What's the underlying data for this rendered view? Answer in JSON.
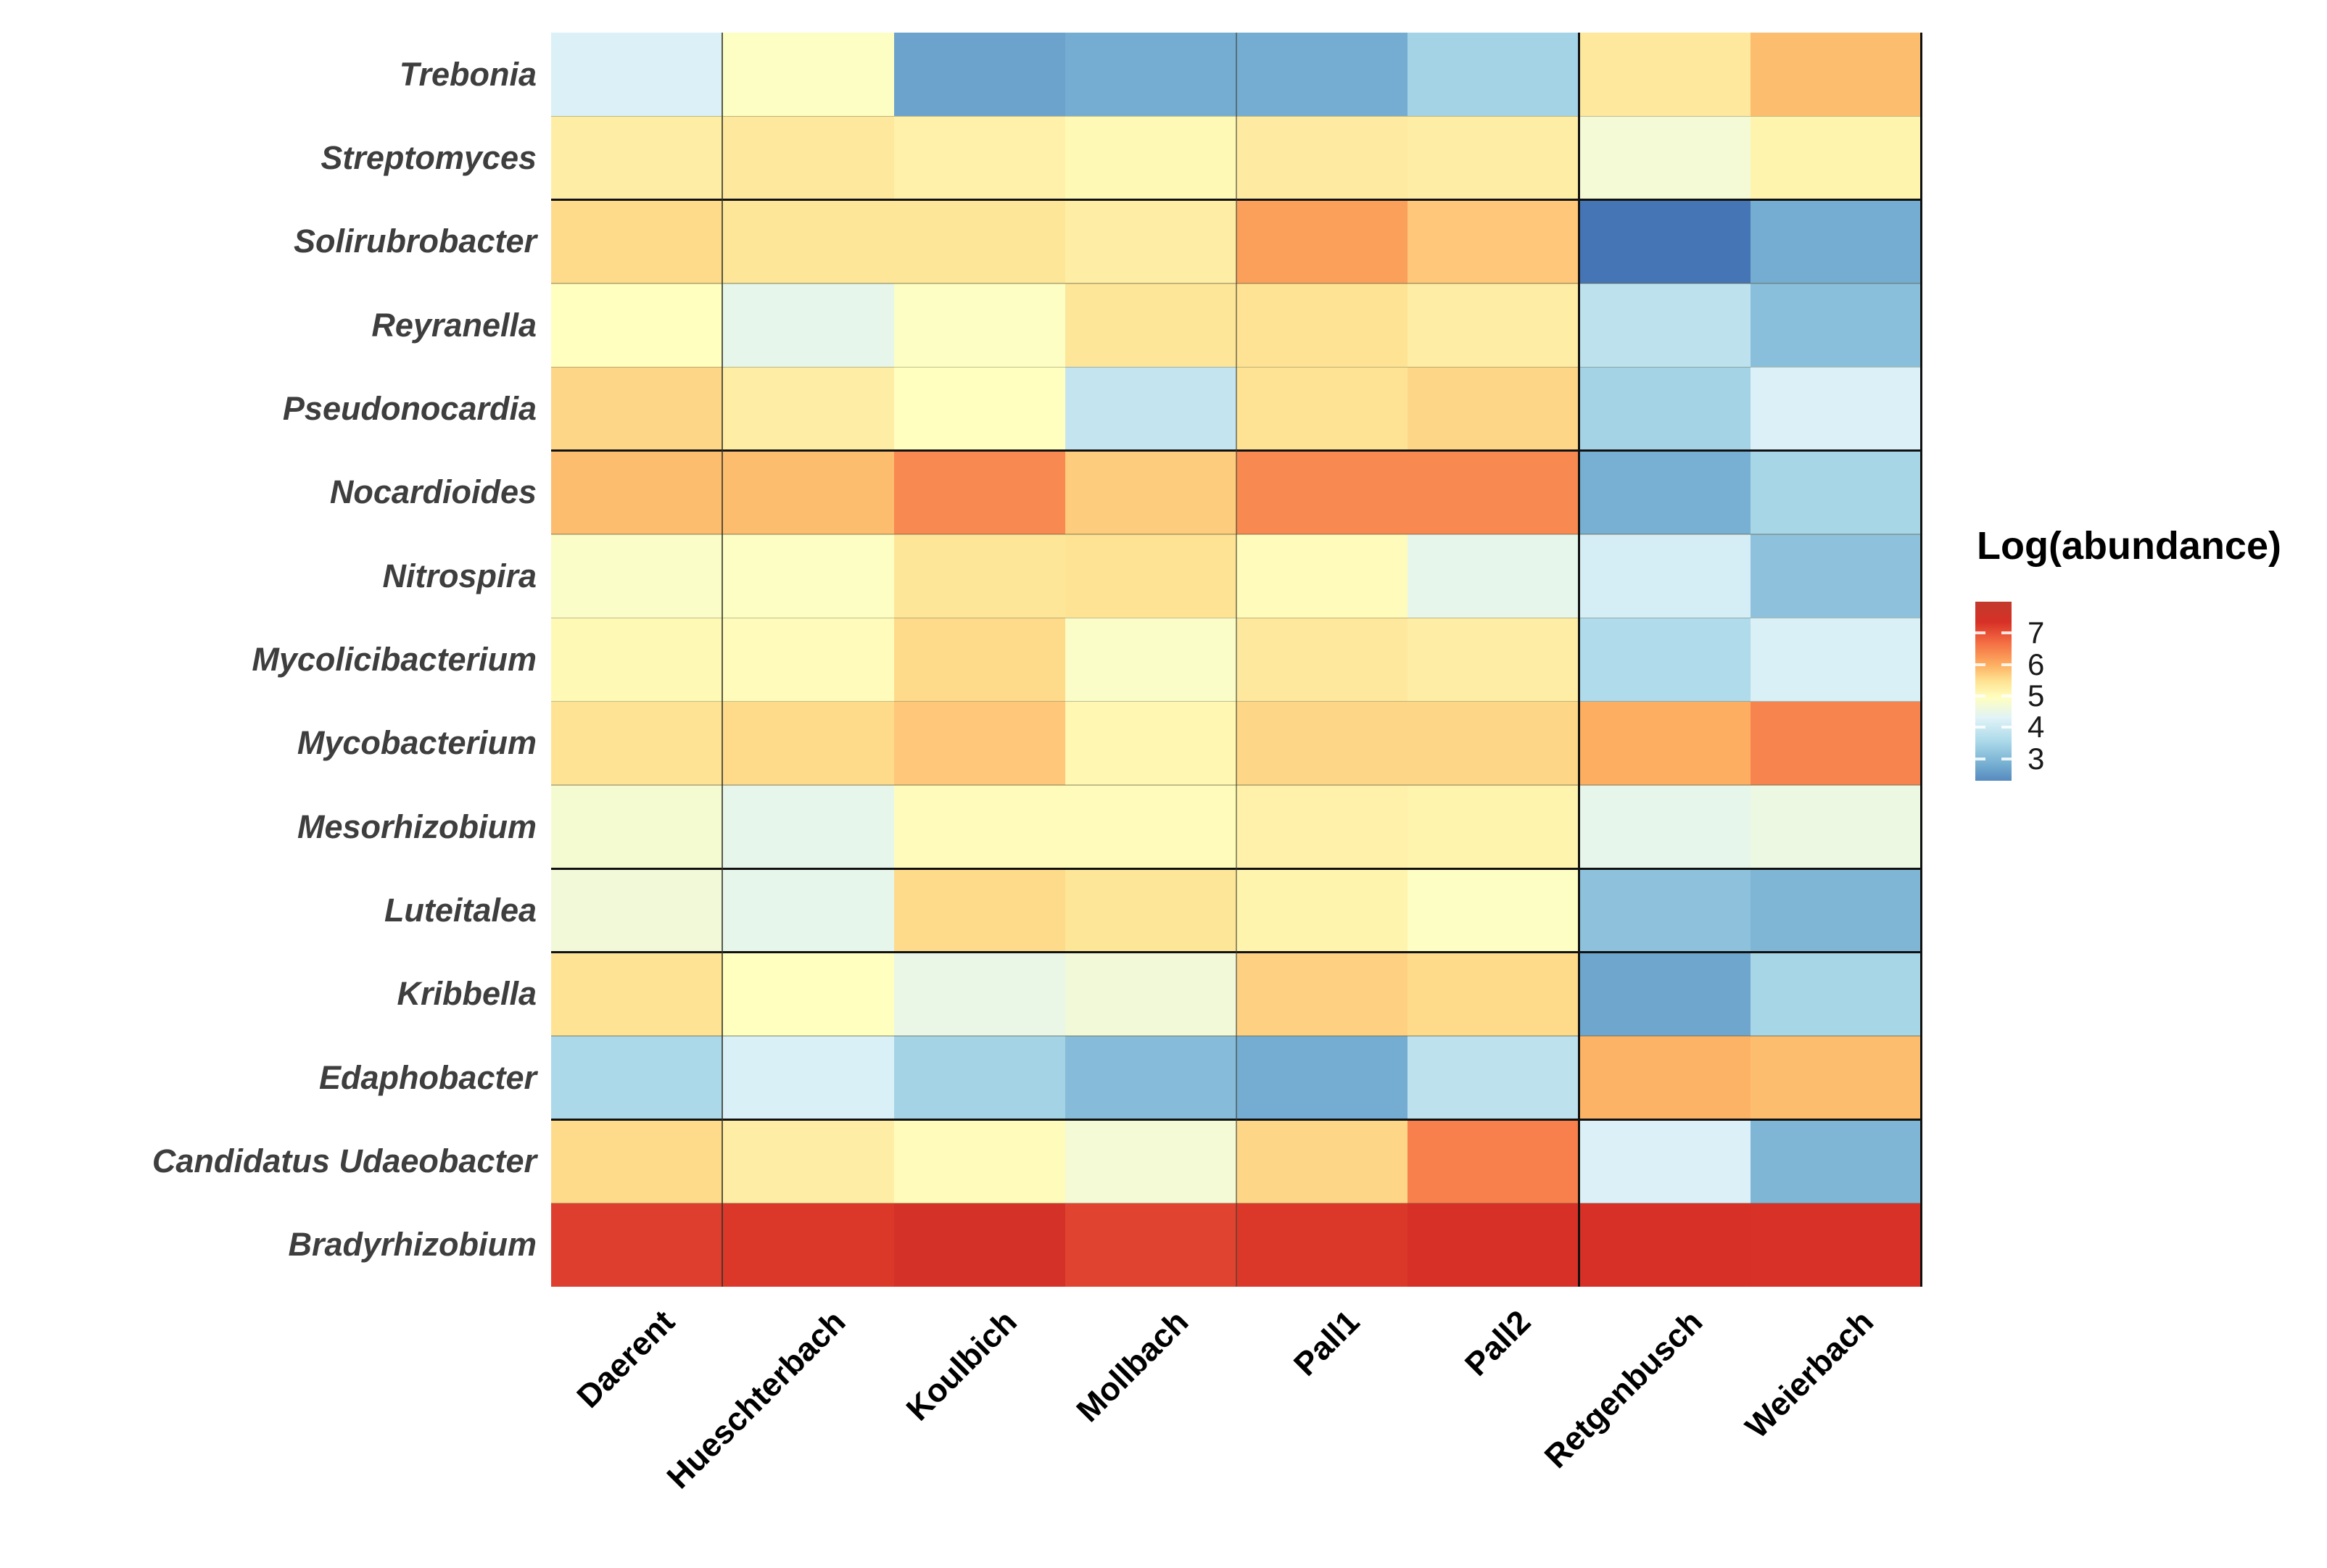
{
  "figure": {
    "background": "#ffffff"
  },
  "chart_data": {
    "type": "heatmap",
    "title": "",
    "xlabel": "",
    "ylabel": "",
    "rows": [
      "Trebonia",
      "Streptomyces",
      "Solirubrobacter",
      "Reyranella",
      "Pseudonocardia",
      "Nocardioides",
      "Nitrospira",
      "Mycolicibacterium",
      "Mycobacterium",
      "Mesorhizobium",
      "Luteitalea",
      "Kribbella",
      "Edaphobacter",
      "Candidatus Udaeobacter",
      "Bradyrhizobium"
    ],
    "columns": [
      "Daerent",
      "Hueschterbach",
      "Koulbich",
      "Mollbach",
      "Pall1",
      "Pall2",
      "Retgenbusch",
      "Weierbach"
    ],
    "values": [
      [
        4.25,
        4.9,
        2.65,
        2.8,
        2.8,
        3.45,
        5.35,
        5.85
      ],
      [
        5.25,
        5.35,
        5.2,
        5.05,
        5.3,
        5.25,
        4.7,
        5.15
      ],
      [
        5.55,
        5.4,
        5.4,
        5.25,
        6.15,
        5.75,
        2.0,
        2.8
      ],
      [
        4.95,
        4.45,
        4.9,
        5.4,
        5.45,
        5.25,
        3.8,
        3.1
      ],
      [
        5.6,
        5.25,
        4.95,
        3.9,
        5.45,
        5.6,
        3.45,
        4.25
      ],
      [
        5.85,
        5.85,
        6.4,
        5.7,
        6.4,
        6.4,
        2.85,
        3.5
      ],
      [
        4.85,
        4.9,
        5.4,
        5.45,
        5.0,
        4.45,
        4.15,
        3.15
      ],
      [
        5.05,
        5.0,
        5.55,
        4.85,
        5.35,
        5.25,
        3.6,
        4.2
      ],
      [
        5.45,
        5.55,
        5.75,
        5.1,
        5.6,
        5.6,
        6.0,
        6.45
      ],
      [
        4.75,
        4.45,
        5.0,
        5.0,
        5.2,
        5.15,
        4.45,
        4.55
      ],
      [
        4.65,
        4.45,
        5.55,
        5.4,
        5.15,
        4.9,
        3.15,
        2.95
      ],
      [
        5.45,
        4.95,
        4.5,
        4.65,
        5.65,
        5.55,
        2.7,
        3.5
      ],
      [
        3.55,
        4.2,
        3.45,
        3.05,
        2.8,
        3.8,
        5.95,
        5.85
      ],
      [
        5.55,
        5.25,
        5.0,
        4.7,
        5.6,
        6.5,
        4.25,
        2.95
      ],
      [
        7.2,
        7.27,
        7.45,
        7.15,
        7.27,
        7.37,
        7.37,
        7.33
      ]
    ],
    "legend": {
      "title": "Log(abundance)",
      "ticks": [
        7,
        6,
        5,
        4,
        3
      ],
      "domain_min": 2.3,
      "domain_max": 8.0,
      "position": "right"
    },
    "colormap": {
      "name": "RdYlBu-reversed",
      "anchors": [
        {
          "v": 2.0,
          "c": "#4575b4"
        },
        {
          "v": 2.8,
          "c": "#74add1"
        },
        {
          "v": 3.55,
          "c": "#abd9e9"
        },
        {
          "v": 4.3,
          "c": "#e0f3f8"
        },
        {
          "v": 4.95,
          "c": "#ffffbf"
        },
        {
          "v": 5.5,
          "c": "#fee090"
        },
        {
          "v": 6.0,
          "c": "#fdae61"
        },
        {
          "v": 6.7,
          "c": "#f46d43"
        },
        {
          "v": 7.35,
          "c": "#d73027"
        },
        {
          "v": 8.0,
          "c": "#c13a2c"
        }
      ]
    },
    "separators": {
      "after_rows": [
        2,
        5,
        10,
        11,
        13
      ],
      "after_cols": [
        1,
        4,
        6
      ],
      "right_edge": true,
      "line_color": "#111111"
    },
    "grid": "thin row hairlines"
  }
}
